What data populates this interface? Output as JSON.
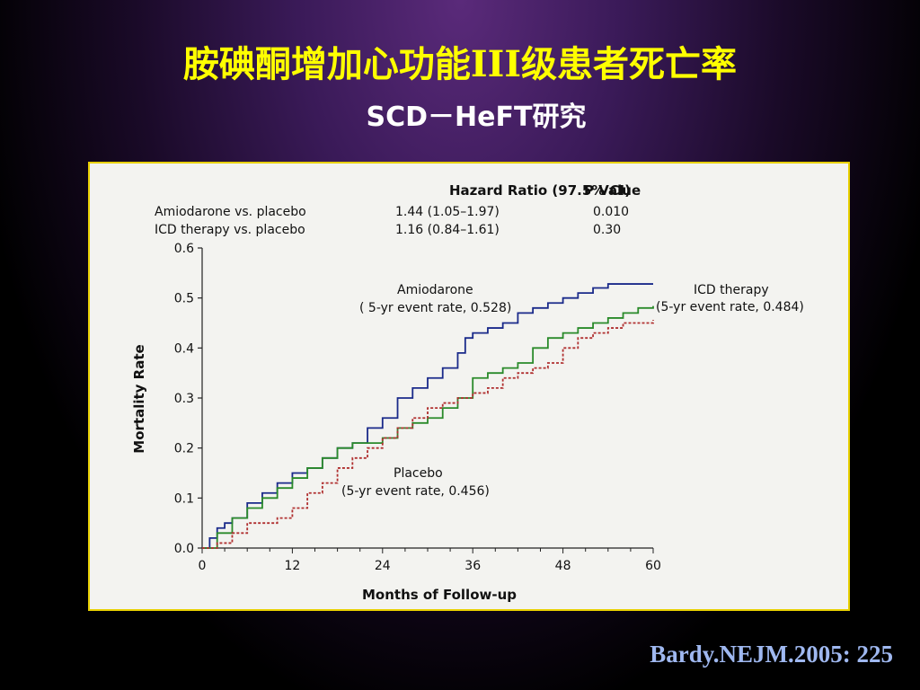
{
  "slide": {
    "title": "胺碘酮增加心功能III级患者死亡率",
    "subtitle": "SCD－HeFT研究",
    "citation": "Bardy.NEJM.2005: 225"
  },
  "hazard_table": {
    "header_metric": "Hazard Ratio (97.5% CI)",
    "header_p": "P Value",
    "rows": [
      {
        "label": "Amiodarone vs. placebo",
        "hr": "1.44 (1.05–1.97)",
        "p": "0.010"
      },
      {
        "label": "ICD therapy vs. placebo",
        "hr": "1.16 (0.84–1.61)",
        "p": "0.30"
      }
    ]
  },
  "chart_data": {
    "type": "line",
    "xlabel": "Months of Follow-up",
    "ylabel": "Mortality Rate",
    "xlim": [
      0,
      60
    ],
    "ylim": [
      0,
      0.6
    ],
    "x_ticks": [
      "0",
      "12",
      "24",
      "36",
      "48",
      "60"
    ],
    "y_ticks": [
      "0.0",
      "0.1",
      "0.2",
      "0.3",
      "0.4",
      "0.5",
      "0.6"
    ],
    "annotations": [
      {
        "series": "Amiodarone",
        "line1": "Amiodarone",
        "line2": "( 5-yr event rate, 0.528)"
      },
      {
        "series": "ICD therapy",
        "line1": "ICD therapy",
        "line2": "(5-yr event rate, 0.484)"
      },
      {
        "series": "Placebo",
        "line1": "Placebo",
        "line2": "(5-yr event rate, 0.456)"
      }
    ],
    "series": [
      {
        "name": "Amiodarone",
        "color": "#1a2a8a",
        "style": "solid",
        "x": [
          0,
          1,
          2,
          3,
          4,
          6,
          8,
          10,
          12,
          14,
          16,
          18,
          20,
          22,
          24,
          26,
          28,
          30,
          32,
          34,
          35,
          36,
          38,
          40,
          42,
          44,
          46,
          48,
          50,
          52,
          54,
          60
        ],
        "y": [
          0,
          0.02,
          0.04,
          0.05,
          0.06,
          0.09,
          0.11,
          0.13,
          0.15,
          0.16,
          0.18,
          0.2,
          0.21,
          0.24,
          0.26,
          0.3,
          0.32,
          0.34,
          0.36,
          0.39,
          0.42,
          0.43,
          0.44,
          0.45,
          0.47,
          0.48,
          0.49,
          0.5,
          0.51,
          0.52,
          0.528,
          0.528
        ]
      },
      {
        "name": "ICD therapy",
        "color": "#2a8a2a",
        "style": "solid",
        "x": [
          0,
          2,
          4,
          6,
          8,
          10,
          12,
          14,
          16,
          18,
          20,
          22,
          24,
          26,
          28,
          30,
          32,
          34,
          36,
          38,
          40,
          42,
          44,
          46,
          48,
          50,
          52,
          54,
          56,
          58,
          60
        ],
        "y": [
          0,
          0.03,
          0.06,
          0.08,
          0.1,
          0.12,
          0.14,
          0.16,
          0.18,
          0.2,
          0.21,
          0.21,
          0.22,
          0.24,
          0.25,
          0.26,
          0.28,
          0.3,
          0.34,
          0.35,
          0.36,
          0.37,
          0.4,
          0.42,
          0.43,
          0.44,
          0.45,
          0.46,
          0.47,
          0.48,
          0.484
        ]
      },
      {
        "name": "Placebo",
        "color": "#b03030",
        "style": "dashed",
        "x": [
          0,
          2,
          4,
          6,
          8,
          10,
          12,
          14,
          16,
          18,
          20,
          22,
          24,
          26,
          28,
          30,
          32,
          34,
          36,
          38,
          40,
          42,
          44,
          46,
          48,
          50,
          52,
          54,
          56,
          58,
          60
        ],
        "y": [
          0,
          0.01,
          0.03,
          0.05,
          0.05,
          0.06,
          0.08,
          0.11,
          0.13,
          0.16,
          0.18,
          0.2,
          0.22,
          0.24,
          0.26,
          0.28,
          0.29,
          0.3,
          0.31,
          0.32,
          0.34,
          0.35,
          0.36,
          0.37,
          0.4,
          0.42,
          0.43,
          0.44,
          0.45,
          0.45,
          0.456
        ]
      }
    ]
  }
}
